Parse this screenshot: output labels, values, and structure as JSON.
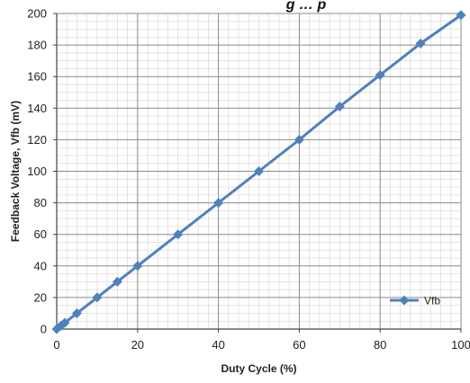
{
  "chart_data": {
    "type": "line",
    "title": "",
    "title_fragment": "g … p",
    "xlabel": "Duty Cycle (%)",
    "ylabel": "Feedback Voltage, Vfb (mV)",
    "xlim": [
      0,
      100
    ],
    "ylim": [
      0,
      200
    ],
    "x_ticks": [
      0,
      20,
      40,
      60,
      80,
      100
    ],
    "y_ticks": [
      0,
      20,
      40,
      60,
      80,
      100,
      120,
      140,
      160,
      180,
      200
    ],
    "grid": true,
    "legend_position": "bottom-right",
    "series": [
      {
        "name": "Vfb",
        "color": "#4F81BD",
        "marker": "diamond",
        "x": [
          0,
          1,
          2,
          5,
          10,
          15,
          20,
          30,
          40,
          50,
          60,
          70,
          80,
          90,
          100
        ],
        "y": [
          0,
          2,
          4,
          10,
          20,
          30,
          40,
          60,
          80,
          100,
          120,
          141,
          161,
          181,
          199
        ]
      }
    ]
  }
}
